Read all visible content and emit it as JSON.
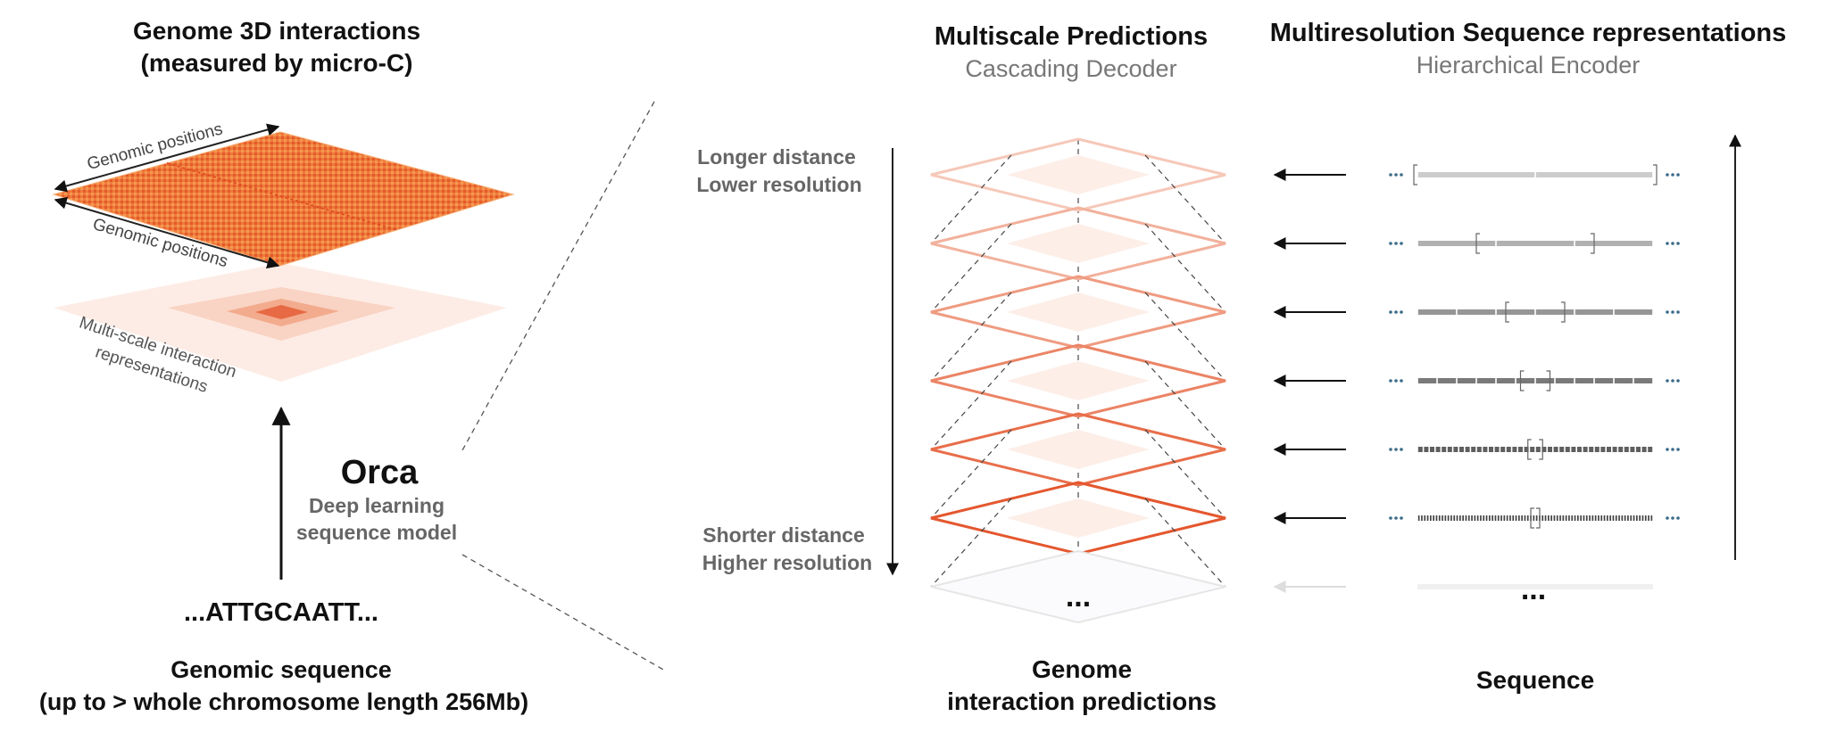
{
  "left": {
    "title_line1": "Genome 3D interactions",
    "title_line2": "(measured by micro-C)",
    "axis_label_top": "Genomic positions",
    "axis_label_bottom": "Genomic positions",
    "multiscale_label_line1": "Multi-scale interaction",
    "multiscale_label_line2": "representations",
    "model_name": "Orca",
    "model_desc_line1": "Deep learning",
    "model_desc_line2": "sequence model",
    "sequence_text": "...ATTGCAATT...",
    "sequence_label_line1": "Genomic sequence",
    "sequence_label_line2": "(up to > whole chromosome length 256Mb)"
  },
  "middle": {
    "title": "Multiscale Predictions",
    "subtitle": "Cascading Decoder",
    "top_note_line1": "Longer distance",
    "top_note_line2": "Lower resolution",
    "bottom_note_line1": "Shorter distance",
    "bottom_note_line2": "Higher resolution",
    "ellipsis": "...",
    "bottom_label_line1": "Genome",
    "bottom_label_line2": "interaction predictions"
  },
  "right": {
    "title": "Multiresolution Sequence representations",
    "subtitle": "Hierarchical Encoder",
    "ellipsis": "...",
    "bottom_label": "Sequence"
  },
  "colors": {
    "heatmap_base": "#f0753a",
    "layer_edge_dark": "#e4572e",
    "layer_edge_light": "#f6c8b8",
    "seq_track_light": "#cccccc",
    "seq_track_dark": "#444444",
    "dots": "#3b6b8a"
  },
  "levels": [
    {
      "id": 1,
      "segments": 2
    },
    {
      "id": 2,
      "segments": 3
    },
    {
      "id": 3,
      "segments": 6
    },
    {
      "id": 4,
      "segments": 12
    },
    {
      "id": 5,
      "segments": 40
    },
    {
      "id": 6,
      "segments": 80
    }
  ]
}
